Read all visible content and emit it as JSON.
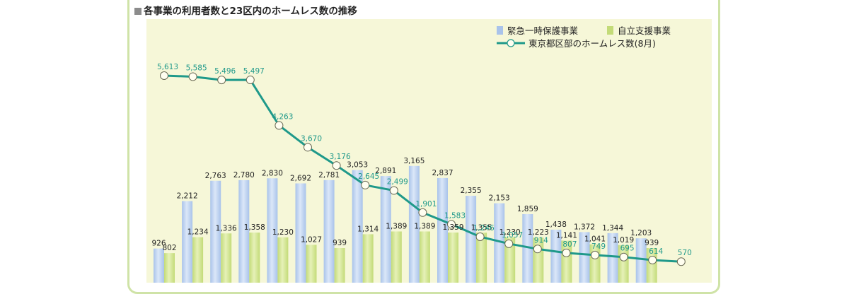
{
  "colors": {
    "plot_bg": "#f6f7d8",
    "bar_a": "#a9c3ea",
    "bar_b": "#c3db78",
    "line": "#1f998a",
    "frame": "#cfe3a7"
  },
  "chart_data": {
    "type": "bar",
    "title": "各事業の利用者数と23区内のホームレス数の推移",
    "legend_position": "top-right",
    "ylim": [
      0,
      6200
    ],
    "series": [
      {
        "name": "緊急一時保護事業",
        "kind": "bar",
        "values": [
          926,
          2212,
          2763,
          2780,
          2830,
          2692,
          2781,
          3053,
          2891,
          3165,
          2837,
          2355,
          2153,
          1859,
          1438,
          1372,
          1344,
          1203
        ]
      },
      {
        "name": "自立支援事業",
        "kind": "bar",
        "values": [
          802,
          1234,
          1336,
          1358,
          1230,
          1027,
          939,
          1314,
          1389,
          1389,
          1359,
          1355,
          1230,
          1223,
          1141,
          1041,
          1019,
          939
        ]
      },
      {
        "name": "東京都区部のホームレス数(8月)",
        "kind": "line",
        "values": [
          5613,
          5585,
          5496,
          5497,
          4263,
          3670,
          3176,
          2645,
          2499,
          1901,
          1583,
          1246,
          1057,
          914,
          807,
          749,
          695,
          614,
          570
        ]
      }
    ]
  }
}
